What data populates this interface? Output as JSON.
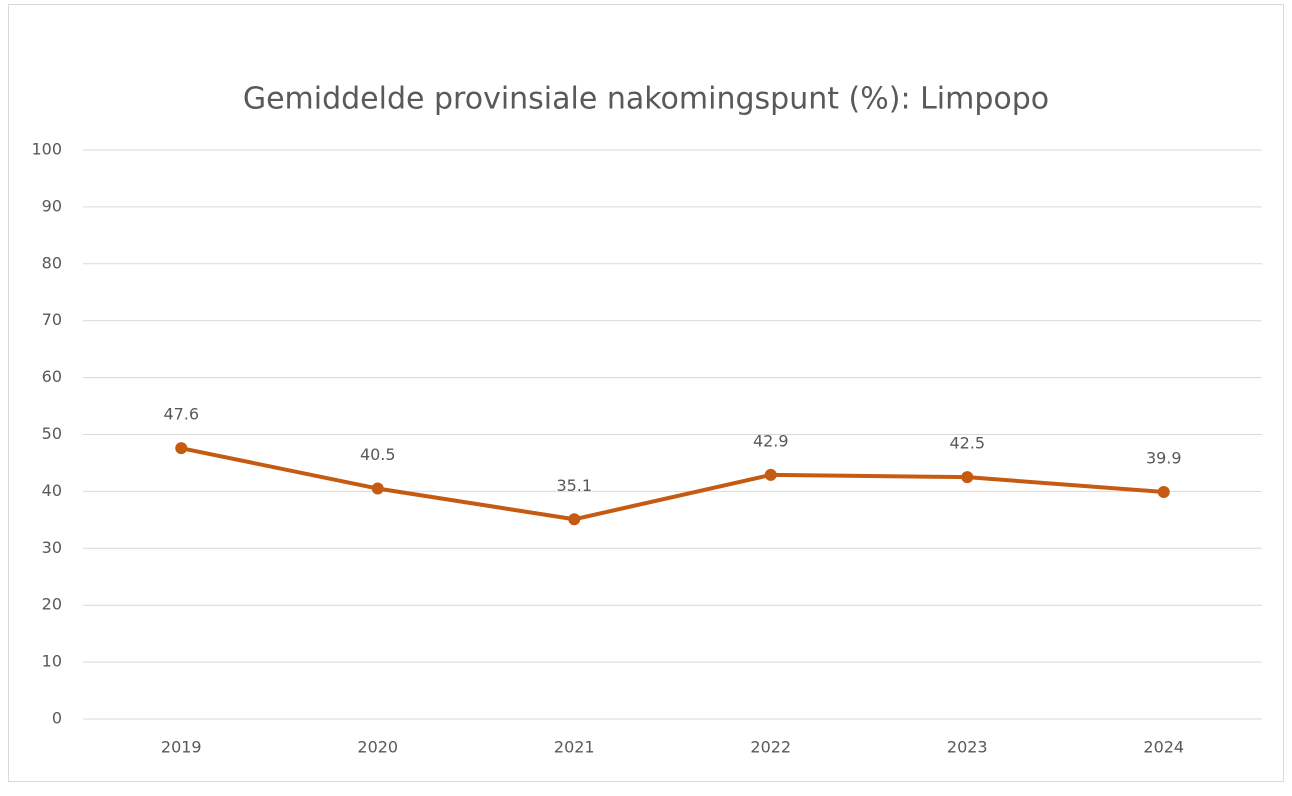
{
  "chart_data": {
    "type": "line",
    "title": "Gemiddelde provinsiale nakomingspunt (%): Limpopo",
    "categories": [
      "2019",
      "2020",
      "2021",
      "2022",
      "2023",
      "2024"
    ],
    "series": [
      {
        "name": "Limpopo",
        "color": "#c55a11",
        "values": [
          47.6,
          40.5,
          35.1,
          42.9,
          42.5,
          39.9
        ]
      }
    ],
    "ylim": [
      0,
      100
    ],
    "yticks": [
      0,
      10,
      20,
      30,
      40,
      50,
      60,
      70,
      80,
      90,
      100
    ],
    "grid": true,
    "data_labels": true
  }
}
